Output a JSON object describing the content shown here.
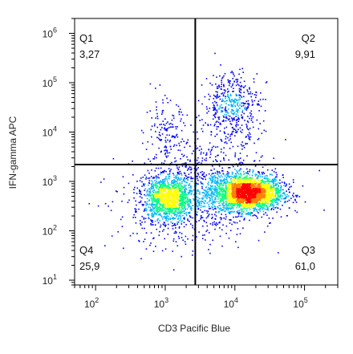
{
  "chart_data": {
    "type": "scatter",
    "subtype": "flow-cytometry-density-dot-plot",
    "xlabel": "CD3 Pacific Blue",
    "ylabel": "IFN-gamma APC",
    "x_scale": "log",
    "y_scale": "log",
    "xlim": [
      50,
      300000
    ],
    "ylim": [
      8,
      2000000
    ],
    "x_ticks": [
      {
        "value": 100,
        "base": "10",
        "exp": "2"
      },
      {
        "value": 1000,
        "base": "10",
        "exp": "3"
      },
      {
        "value": 10000,
        "base": "10",
        "exp": "4"
      },
      {
        "value": 100000,
        "base": "10",
        "exp": "5"
      }
    ],
    "y_ticks": [
      {
        "value": 10,
        "base": "10",
        "exp": "1"
      },
      {
        "value": 100,
        "base": "10",
        "exp": "2"
      },
      {
        "value": 1000,
        "base": "10",
        "exp": "3"
      },
      {
        "value": 10000,
        "base": "10",
        "exp": "4"
      },
      {
        "value": 100000,
        "base": "10",
        "exp": "5"
      },
      {
        "value": 1000000,
        "base": "10",
        "exp": "6"
      }
    ],
    "gates": {
      "x": 2700,
      "y": 2200
    },
    "quadrants": [
      {
        "name": "Q1",
        "percent": "3,27",
        "position": "top-left"
      },
      {
        "name": "Q2",
        "percent": "9,91",
        "position": "top-right"
      },
      {
        "name": "Q3",
        "percent": "61,0",
        "position": "bottom-right"
      },
      {
        "name": "Q4",
        "percent": "25,9",
        "position": "bottom-left"
      }
    ],
    "populations": [
      {
        "x": 15000,
        "y": 600,
        "sx": 0.25,
        "sy": 0.18,
        "weight": 0.48
      },
      {
        "x": 1100,
        "y": 450,
        "sx": 0.17,
        "sy": 0.22,
        "weight": 0.22
      },
      {
        "x": 9000,
        "y": 35000,
        "sx": 0.2,
        "sy": 0.35,
        "weight": 0.09
      },
      {
        "x": 1000,
        "y": 8000,
        "sx": 0.15,
        "sy": 0.38,
        "weight": 0.03
      },
      {
        "x": 4000,
        "y": 1200,
        "sx": 0.45,
        "sy": 0.45,
        "weight": 0.1
      },
      {
        "x": 2000,
        "y": 250,
        "sx": 0.55,
        "sy": 0.4,
        "weight": 0.08
      }
    ],
    "density_colors": [
      "#0000ff",
      "#00b4ff",
      "#00ff80",
      "#ffff00",
      "#ff8000",
      "#ff0000"
    ],
    "gate_color": "#000000"
  }
}
